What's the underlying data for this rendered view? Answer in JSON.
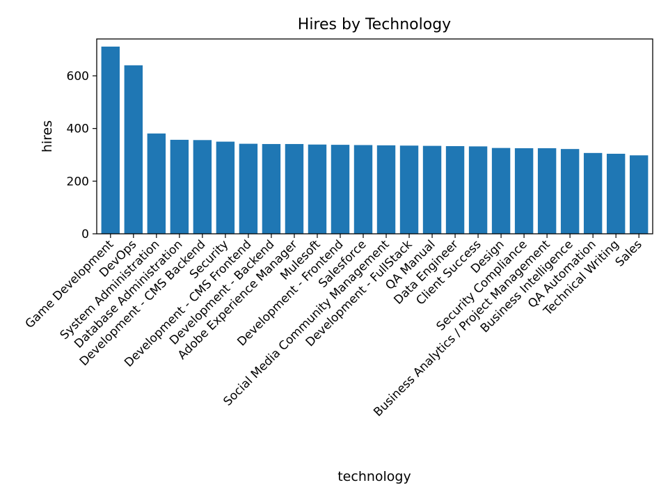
{
  "chart_data": {
    "type": "bar",
    "title": "Hires by Technology",
    "xlabel": "technology",
    "ylabel": "hires",
    "ylim": [
      0,
      740
    ],
    "yticks": [
      0,
      200,
      400,
      600
    ],
    "grid": false,
    "colors": {
      "bar": "#1f77b4"
    },
    "categories": [
      "Game Development",
      "DevOps",
      "System Administration",
      "Database Administration",
      "Development - CMS Backend",
      "Security",
      "Development - CMS Frontend",
      "Development - Backend",
      "Adobe Experience Manager",
      "Mulesoft",
      "Development - Frontend",
      "Salesforce",
      "Social Media Community Management",
      "Development - FullStack",
      "QA Manual",
      "Data Engineer",
      "Client Success",
      "Design",
      "Security Compliance",
      "Business Analytics / Project Management",
      "Business Intelligence",
      "QA Automation",
      "Technical Writing",
      "Sales"
    ],
    "values": [
      711,
      640,
      381,
      357,
      356,
      350,
      342,
      341,
      341,
      339,
      338,
      337,
      336,
      335,
      334,
      333,
      332,
      326,
      325,
      325,
      322,
      307,
      304,
      298
    ]
  }
}
